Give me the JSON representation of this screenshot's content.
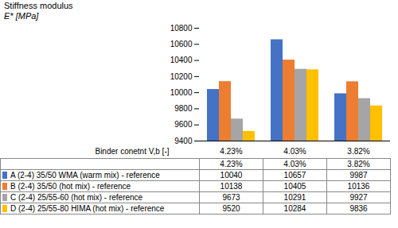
{
  "chart_data": {
    "type": "bar",
    "ylabel": "Stiffness modulus\nE* [MPa]",
    "xlabel": "Binder conetnt V,b [-]",
    "categories": [
      "4.23%",
      "4.03%",
      "3.82%"
    ],
    "series": [
      {
        "name": "A (2-4) 35/50 WMA (warm mix) - reference",
        "color": "#4472c4",
        "values": [
          10040,
          10657,
          9987
        ]
      },
      {
        "name": "B (2-4) 35/50 (hot mix) - reference",
        "color": "#ed7d31",
        "values": [
          10138,
          10405,
          10136
        ]
      },
      {
        "name": "C (2-4) 25/55-60 (hot mix) - reference",
        "color": "#a5a5a5",
        "values": [
          9673,
          10291,
          9927
        ]
      },
      {
        "name": "D (2-4) 25/55-80 HIMA (hot mix) - reference",
        "color": "#ffc000",
        "values": [
          9520,
          10284,
          9836
        ]
      }
    ],
    "ylim": [
      9400,
      10800
    ],
    "yticks": [
      9400,
      9600,
      9800,
      10000,
      10200,
      10400,
      10600,
      10800
    ],
    "grid": false,
    "legend": "bottom"
  }
}
